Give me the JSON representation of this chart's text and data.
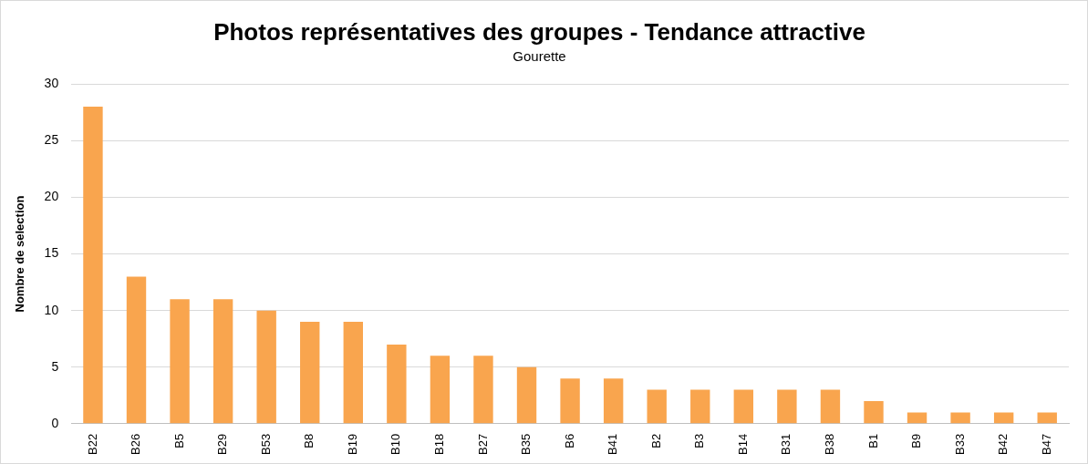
{
  "chart_data": {
    "type": "bar",
    "title": "Photos représentatives des groupes - Tendance attractive",
    "subtitle": "Gourette",
    "ylabel": "Nombre de selection",
    "categories": [
      "B22",
      "B26",
      "B5",
      "B29",
      "B53",
      "B8",
      "B19",
      "B10",
      "B18",
      "B27",
      "B35",
      "B6",
      "B41",
      "B2",
      "B3",
      "B14",
      "B31",
      "B38",
      "B1",
      "B9",
      "B33",
      "B42",
      "B47"
    ],
    "values": [
      28,
      13,
      11,
      11,
      10,
      9,
      9,
      7,
      6,
      6,
      5,
      4,
      4,
      3,
      3,
      3,
      3,
      3,
      2,
      1,
      1,
      1,
      1
    ],
    "color": "#f9a54e",
    "ylim": [
      0,
      30
    ],
    "yticks": [
      0,
      5,
      10,
      15,
      20,
      25,
      30
    ],
    "grid": "y"
  }
}
